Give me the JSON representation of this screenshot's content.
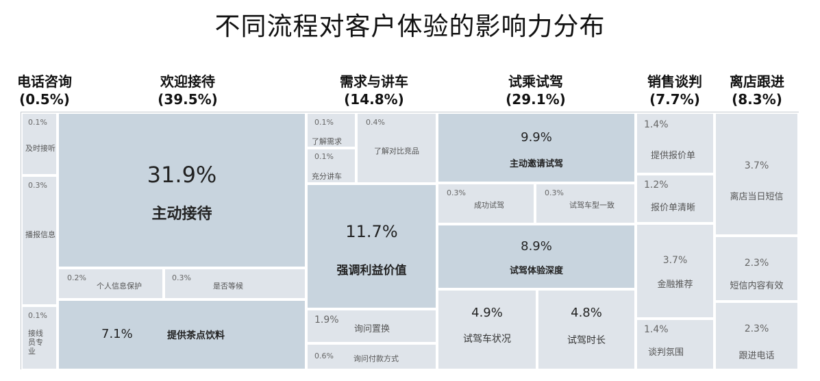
{
  "chart_data": {
    "type": "treemap",
    "title": "不同流程对客户体验的影响力分布",
    "groups": [
      {
        "name": "电话咨询",
        "share": "(0.5%)",
        "items": [
          {
            "label": "及时接听",
            "value": 0.1
          },
          {
            "label": "播报信息",
            "value": 0.3
          },
          {
            "label": "接线员专业",
            "value": 0.1
          }
        ]
      },
      {
        "name": "欢迎接待",
        "share": "(39.5%)",
        "items": [
          {
            "label": "主动接待",
            "value": 31.9
          },
          {
            "label": "个人信息保护",
            "value": 0.2
          },
          {
            "label": "是否等候",
            "value": 0.3
          },
          {
            "label": "提供茶点饮料",
            "value": 7.1
          }
        ]
      },
      {
        "name": "需求与讲车",
        "share": "(14.8%)",
        "items": [
          {
            "label": "了解需求",
            "value": 0.1
          },
          {
            "label": "充分讲车",
            "value": 0.1
          },
          {
            "label": "了解对比竞品",
            "value": 0.4
          },
          {
            "label": "强调利益价值",
            "value": 11.7
          },
          {
            "label": "询问置换",
            "value": 1.9
          },
          {
            "label": "询问付款方式",
            "value": 0.6
          }
        ]
      },
      {
        "name": "试乘试驾",
        "share": "(29.1%)",
        "items": [
          {
            "label": "主动邀请试驾",
            "value": 9.9
          },
          {
            "label": "成功试驾",
            "value": 0.3
          },
          {
            "label": "试驾车型一致",
            "value": 0.3
          },
          {
            "label": "试驾体验深度",
            "value": 8.9
          },
          {
            "label": "试驾车状况",
            "value": 4.9
          },
          {
            "label": "试驾时长",
            "value": 4.8
          }
        ]
      },
      {
        "name": "销售谈判",
        "share": "(7.7%)",
        "items": [
          {
            "label": "提供报价单",
            "value": 1.4
          },
          {
            "label": "报价单清晰",
            "value": 1.2
          },
          {
            "label": "金融推荐",
            "value": 3.7
          },
          {
            "label": "谈判氛围",
            "value": 1.4
          }
        ]
      },
      {
        "name": "离店跟进",
        "share": "(8.3%)",
        "items": [
          {
            "label": "离店当日短信",
            "value": 3.7
          },
          {
            "label": "短信内容有效",
            "value": 2.3
          },
          {
            "label": "跟进电话",
            "value": 2.3
          }
        ]
      }
    ],
    "colors": {
      "light": "#dfe4ea",
      "dark": "#c8d4de",
      "border": "#ffffff"
    }
  }
}
